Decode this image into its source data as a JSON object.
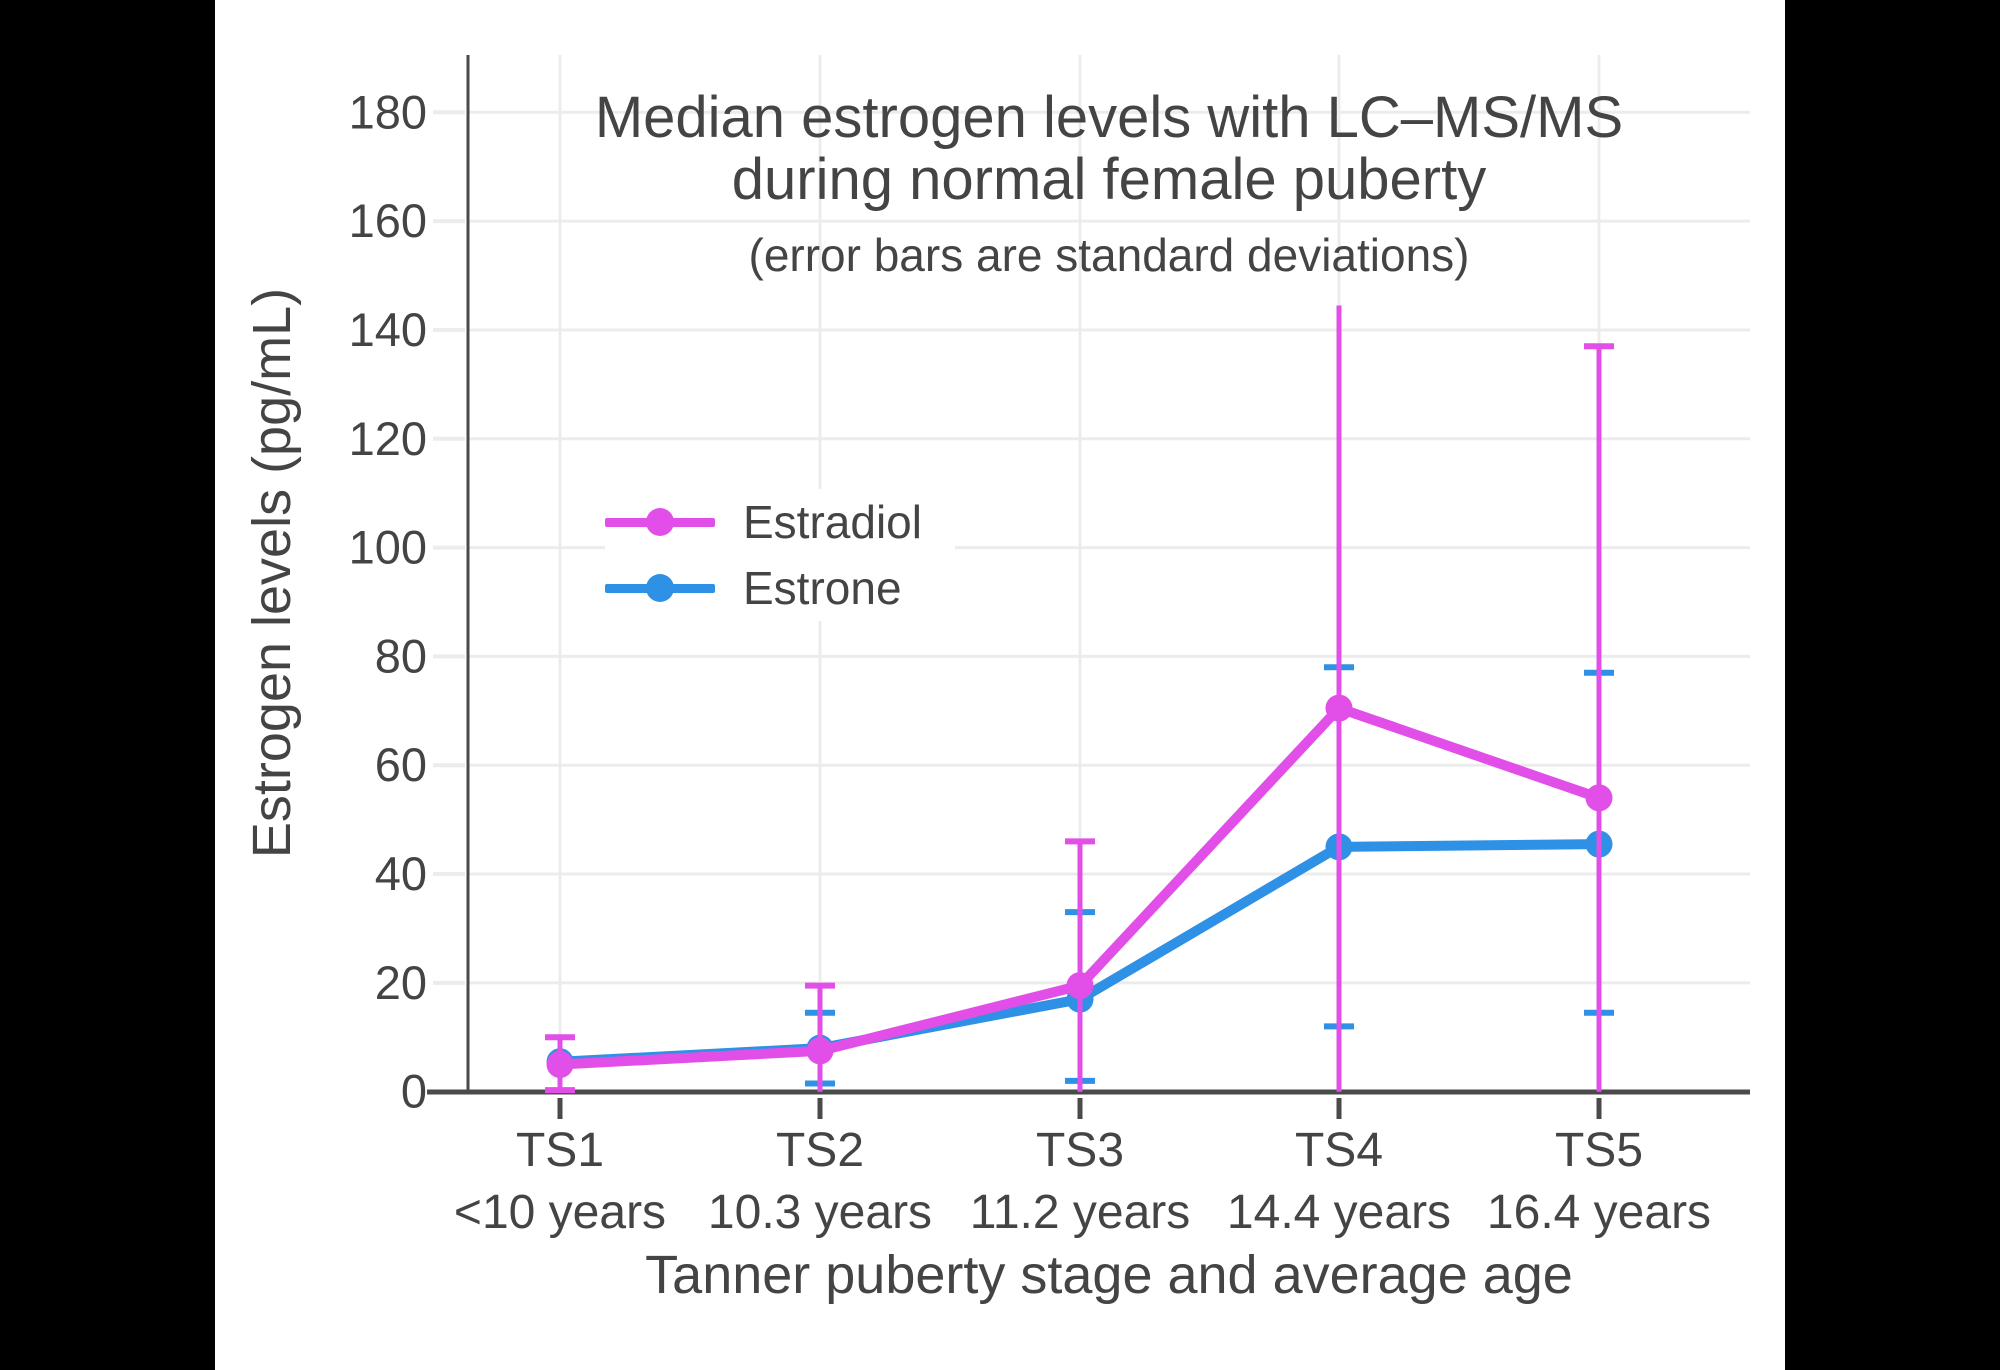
{
  "window": {
    "background": "#000000",
    "canvas_background": "#ffffff"
  },
  "title": {
    "line1": "Median estrogen levels with LC–MS/MS",
    "line2": "during normal female puberty",
    "subtitle": "(error bars are standard deviations)"
  },
  "axes": {
    "x_title": "Tanner puberty stage and average age",
    "y_title": "Estrogen levels (pg/mL)"
  },
  "legend": {
    "entries": [
      {
        "label": "Estradiol",
        "color": "#E24FE8"
      },
      {
        "label": "Estrone",
        "color": "#2E91E5"
      }
    ]
  },
  "chart_data": {
    "type": "line",
    "title": "Median estrogen levels with LC–MS/MS during normal female puberty",
    "subtitle": "(error bars are standard deviations)",
    "xlabel": "Tanner puberty stage and average age",
    "ylabel": "Estrogen levels (pg/mL)",
    "grid": true,
    "legend_position": "inside-upper-left",
    "x_categories": [
      {
        "stage": "TS1",
        "age": "<10 years"
      },
      {
        "stage": "TS2",
        "age": "10.3 years"
      },
      {
        "stage": "TS3",
        "age": "11.2 years"
      },
      {
        "stage": "TS4",
        "age": "14.4 years"
      },
      {
        "stage": "TS5",
        "age": "16.4 years"
      }
    ],
    "y_axis": {
      "min": 0,
      "max": 190,
      "tick_min": 0,
      "tick_max": 180,
      "tick_step": 20
    },
    "style": {
      "grid_color": "#ECECEC",
      "axis_color": "#4A4A4A",
      "text_color": "#444444"
    },
    "series": [
      {
        "name": "Estrone",
        "color": "#2E91E5",
        "values": [
          5.5,
          8,
          17,
          45,
          45.5
        ],
        "error_bars": [
          null,
          {
            "upper": 14.5,
            "lower": 1.5,
            "upper_cap": true,
            "lower_cap": true
          },
          {
            "upper": 33,
            "lower": 2,
            "upper_cap": true,
            "lower_cap": true
          },
          {
            "upper": 78,
            "lower": 12,
            "upper_cap": true,
            "lower_cap": true
          },
          {
            "upper": 77,
            "lower": 14.5,
            "upper_cap": true,
            "lower_cap": true
          }
        ]
      },
      {
        "name": "Estradiol",
        "color": "#E24FE8",
        "values": [
          5,
          7.5,
          19.5,
          70.5,
          54
        ],
        "error_bars": [
          {
            "upper": 10,
            "lower": 0.3,
            "upper_cap": true,
            "lower_cap": true
          },
          {
            "upper": 19.5,
            "lower": 0,
            "upper_cap": true,
            "lower_cap": false
          },
          {
            "upper": 46,
            "lower": 0,
            "upper_cap": true,
            "lower_cap": false
          },
          {
            "upper": 144.5,
            "lower": 0,
            "upper_cap": false,
            "lower_cap": false
          },
          {
            "upper": 137,
            "lower": 0,
            "upper_cap": true,
            "lower_cap": false
          }
        ]
      }
    ]
  }
}
